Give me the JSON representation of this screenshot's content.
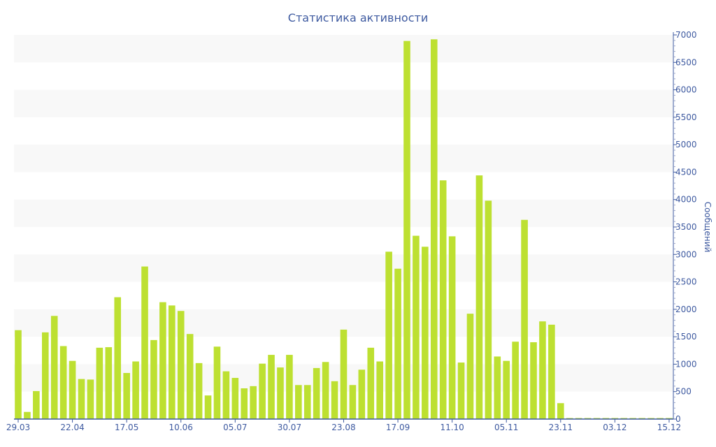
{
  "chart_data": {
    "type": "bar",
    "title": "Статистика активности",
    "ylabel": "Сообщений",
    "xlabel": "",
    "ylim": [
      0,
      7000
    ],
    "yticks": [
      0,
      500,
      1000,
      1500,
      2000,
      2500,
      3000,
      3500,
      4000,
      4500,
      5000,
      5500,
      6000,
      6500,
      7000
    ],
    "y_axis_side": "right",
    "grid": "alternating bands",
    "x_tick_labels": [
      {
        "index": 0,
        "label": "29.03"
      },
      {
        "index": 6,
        "label": "22.04"
      },
      {
        "index": 12,
        "label": "17.05"
      },
      {
        "index": 18,
        "label": "10.06"
      },
      {
        "index": 24,
        "label": "05.07"
      },
      {
        "index": 30,
        "label": "30.07"
      },
      {
        "index": 36,
        "label": "23.08"
      },
      {
        "index": 42,
        "label": "17.09"
      },
      {
        "index": 48,
        "label": "11.10"
      },
      {
        "index": 54,
        "label": "05.11"
      },
      {
        "index": 60,
        "label": "23.11"
      },
      {
        "index": 66,
        "label": "03.12"
      },
      {
        "index": 72,
        "label": "15.12"
      }
    ],
    "series": [
      {
        "name": "Сообщений",
        "color": "#bde031",
        "values": [
          1620,
          130,
          510,
          1580,
          1880,
          1330,
          1060,
          730,
          720,
          1300,
          1310,
          2220,
          840,
          1050,
          2780,
          1440,
          2130,
          2070,
          1970,
          1550,
          1020,
          430,
          1320,
          870,
          750,
          560,
          600,
          1010,
          1170,
          940,
          1170,
          620,
          620,
          930,
          1040,
          690,
          1630,
          620,
          900,
          1300,
          1050,
          3050,
          2740,
          6890,
          3340,
          3140,
          6920,
          4350,
          3330,
          1030,
          1920,
          4440,
          3980,
          1140,
          1060,
          1410,
          3630,
          1400,
          1780,
          1720,
          290,
          10,
          10,
          10,
          10,
          10,
          10,
          10,
          10,
          10,
          10,
          10,
          10
        ]
      }
    ],
    "colors": {
      "axis": "#3e5aa0",
      "band": "#f8f8f8",
      "bar": "#bde031"
    }
  }
}
